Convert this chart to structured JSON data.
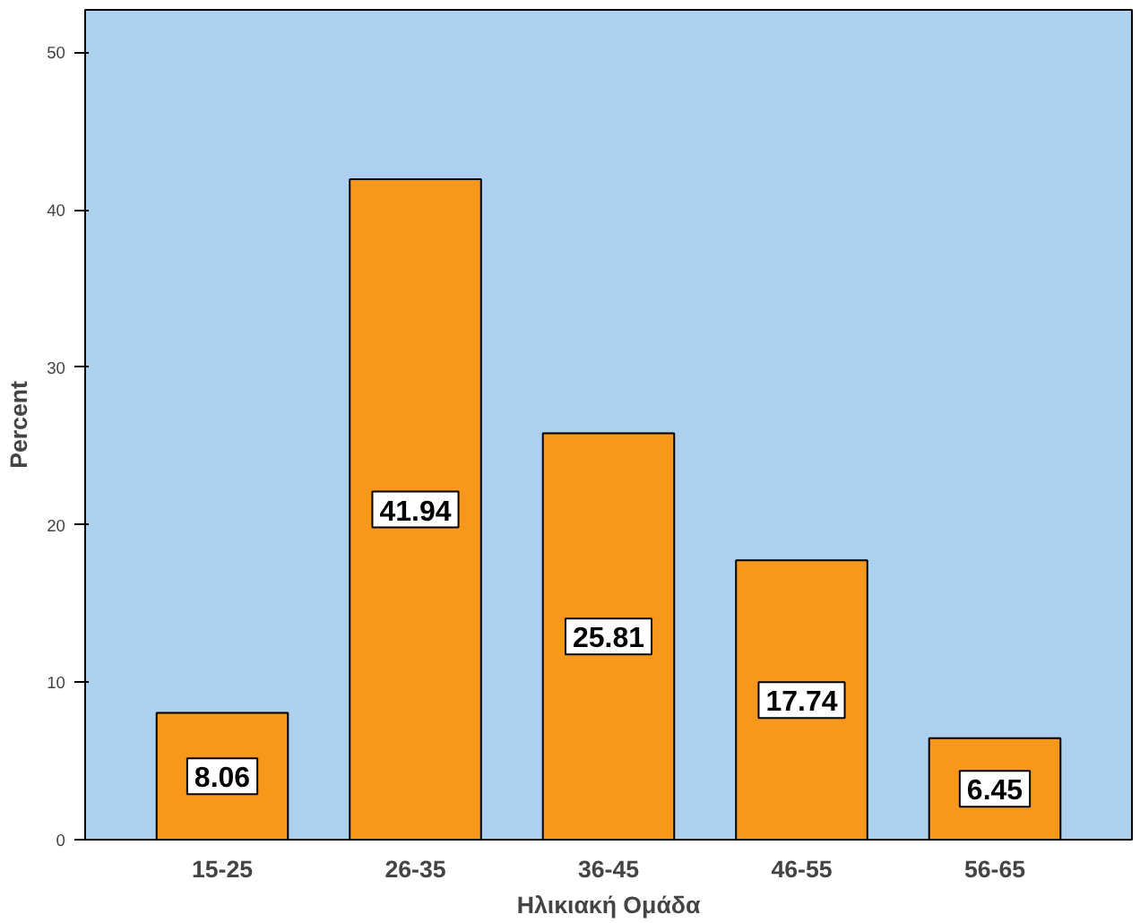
{
  "chart_data": {
    "type": "bar",
    "xlabel": "Ηλικιακή Ομάδα",
    "ylabel": "Percent",
    "categories": [
      "15-25",
      "26-35",
      "36-45",
      "46-55",
      "56-65"
    ],
    "values": [
      8.06,
      41.94,
      25.81,
      17.74,
      6.45
    ],
    "color": "#f7981d",
    "ylim": [
      0,
      52.7
    ],
    "yticks": [
      0,
      10,
      20,
      30,
      40,
      50
    ],
    "grid": false,
    "data_labels": true
  }
}
